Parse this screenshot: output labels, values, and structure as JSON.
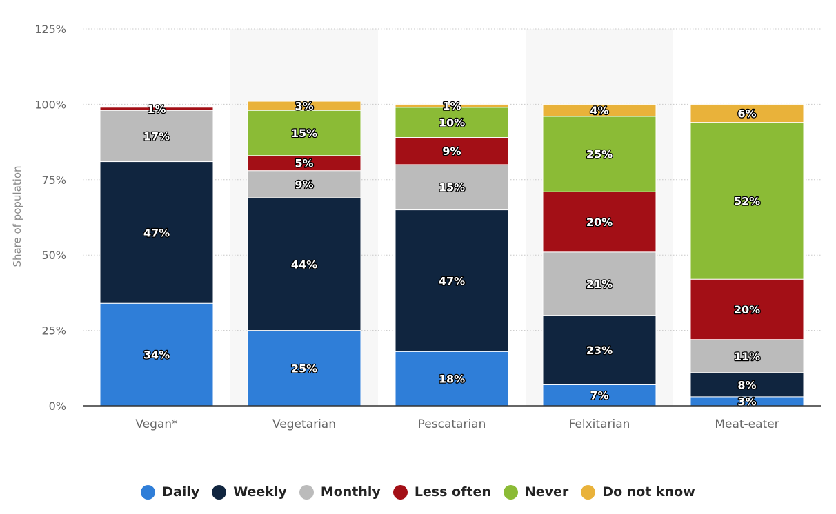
{
  "chart_data": {
    "type": "bar",
    "stacked": true,
    "categories": [
      "Vegan*",
      "Vegetarian",
      "Pescatarian",
      "Felxitarian",
      "Meat-eater"
    ],
    "series": [
      {
        "name": "Daily",
        "color": "#2f7ed8",
        "values": [
          34,
          25,
          18,
          7,
          3
        ]
      },
      {
        "name": "Weekly",
        "color": "#10253f",
        "values": [
          47,
          44,
          47,
          23,
          8
        ]
      },
      {
        "name": "Monthly",
        "color": "#bbbbbb",
        "values": [
          17,
          9,
          15,
          21,
          11
        ]
      },
      {
        "name": "Less often",
        "color": "#a30f16",
        "values": [
          1,
          5,
          9,
          20,
          20
        ]
      },
      {
        "name": "Never",
        "color": "#8bbb36",
        "values": [
          0,
          15,
          10,
          25,
          52
        ]
      },
      {
        "name": "Do not know",
        "color": "#e9b23a",
        "values": [
          0,
          3,
          1,
          4,
          6
        ]
      }
    ],
    "data_labels": [
      [
        "34%",
        "47%",
        "17%",
        "1%",
        null,
        null
      ],
      [
        "25%",
        "44%",
        "9%",
        "5%",
        "15%",
        "3%"
      ],
      [
        "18%",
        "47%",
        "15%",
        "9%",
        "10%",
        "1%"
      ],
      [
        "7%",
        "23%",
        "21%",
        "20%",
        "25%",
        "4%"
      ],
      [
        "3%",
        "8%",
        "11%",
        "20%",
        "52%",
        "6%"
      ]
    ],
    "ylabel": "Share of population",
    "ylim": [
      0,
      125
    ],
    "yticks": [
      "0%",
      "25%",
      "50%",
      "75%",
      "100%",
      "125%"
    ],
    "grid": true,
    "legend_position": "bottom"
  }
}
